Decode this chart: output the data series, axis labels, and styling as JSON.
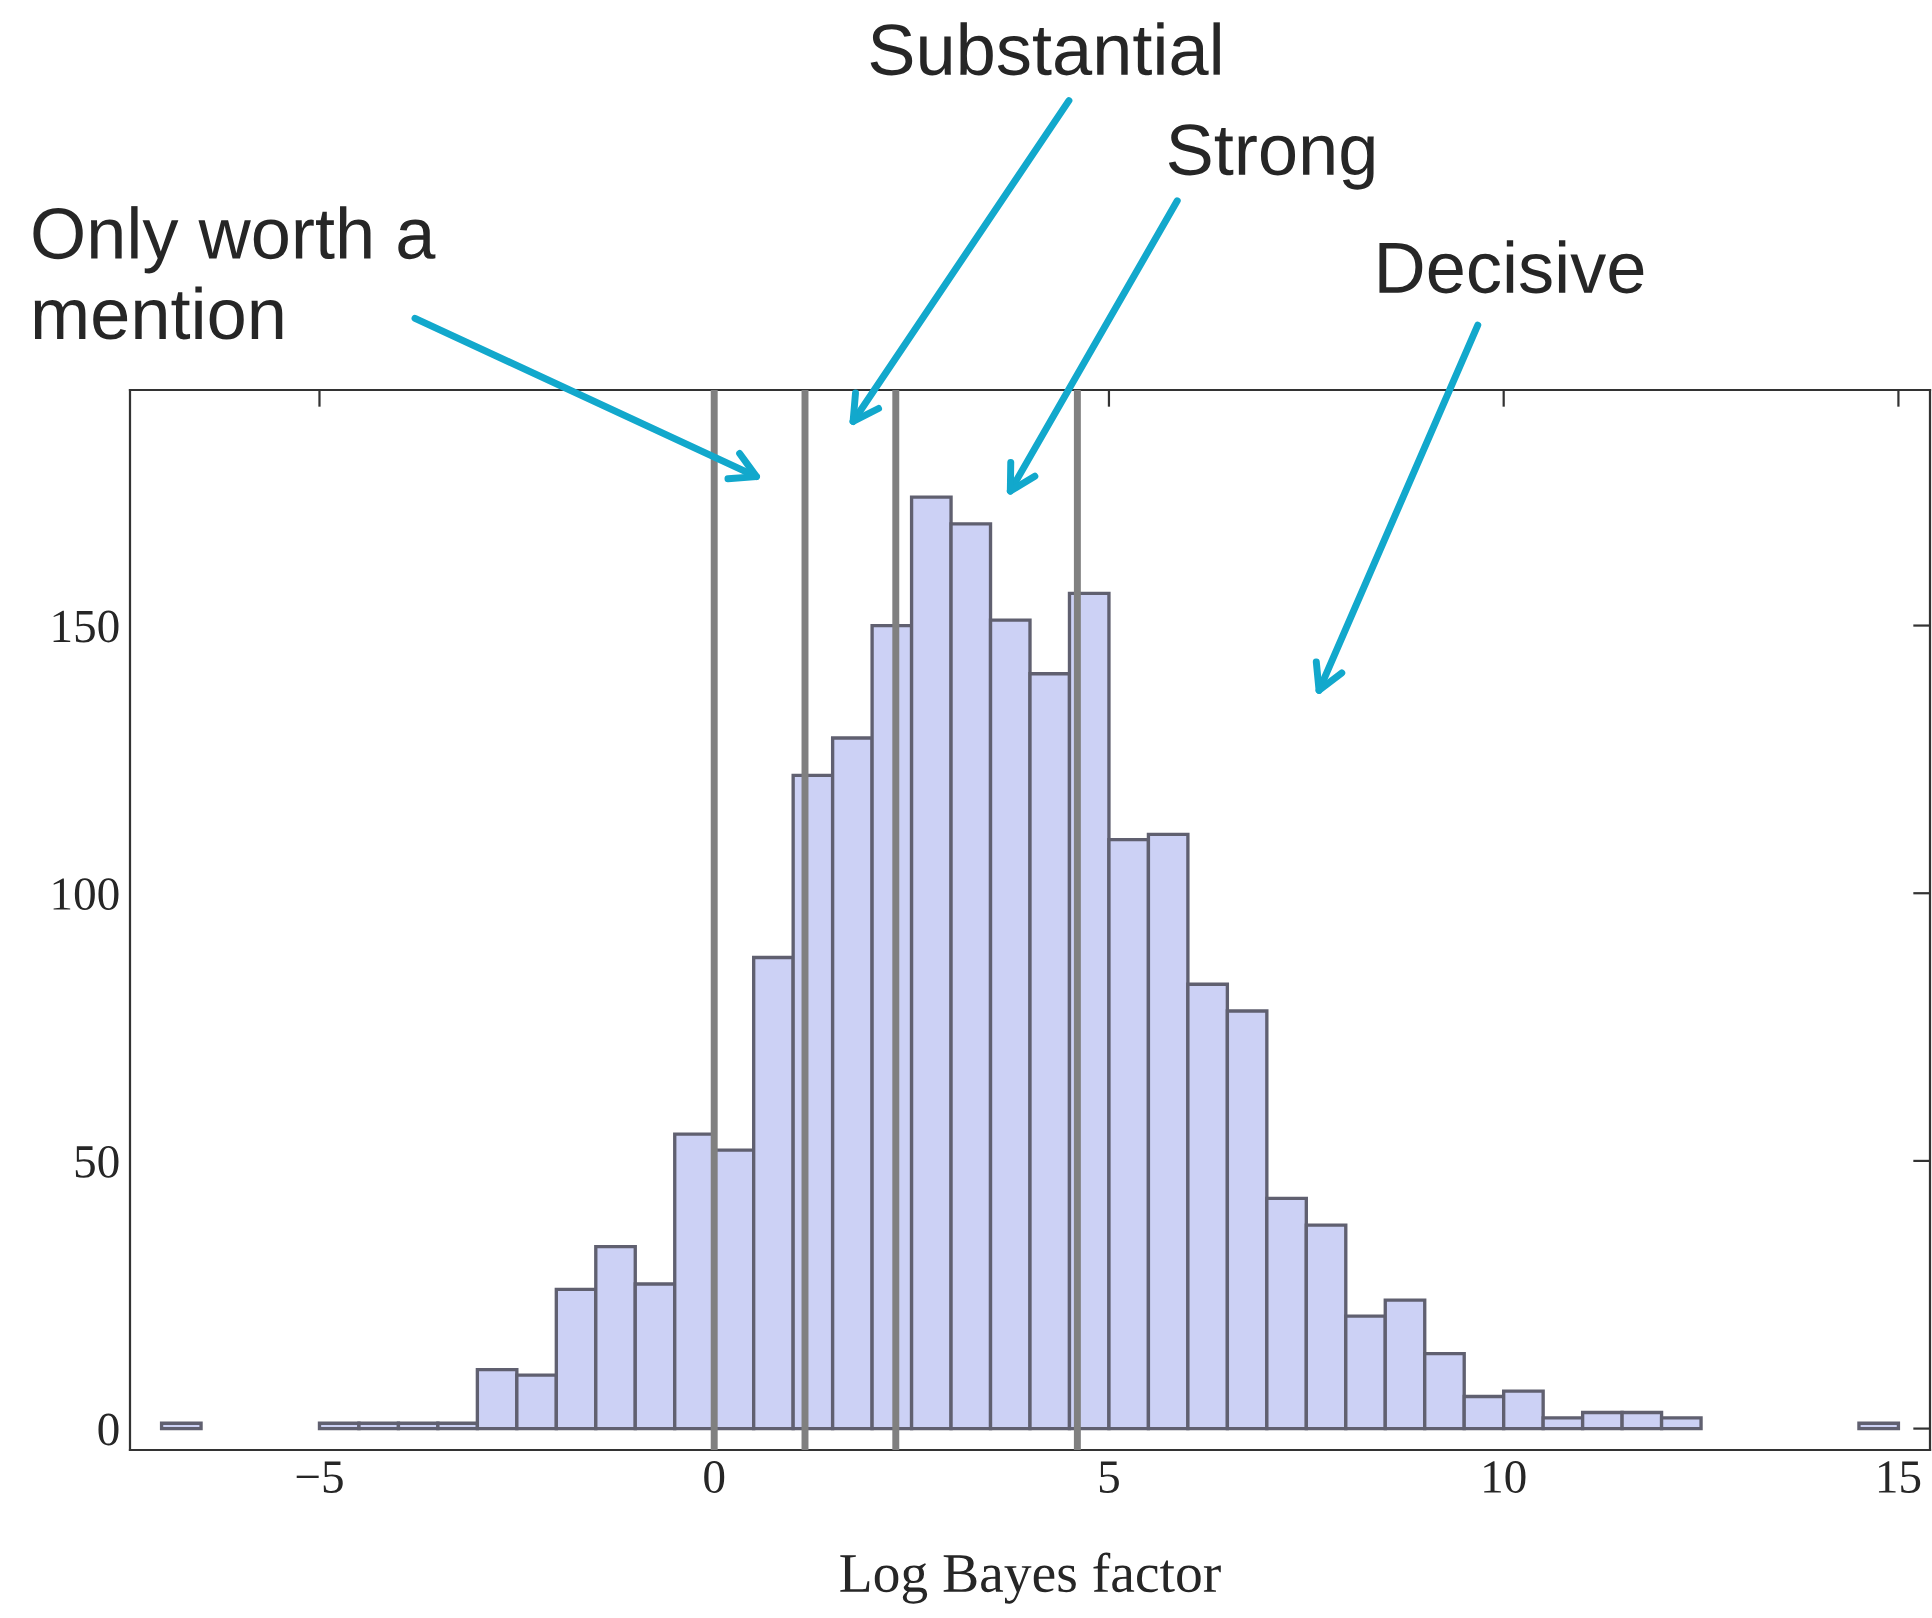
{
  "chart_data": {
    "type": "histogram",
    "xlabel": "Log Bayes factor",
    "bins": [
      -7,
      -6.5,
      -6,
      -5.5,
      -5,
      -4.5,
      -4,
      -3.5,
      -3,
      -2.5,
      -2,
      -1.5,
      -1,
      -0.5,
      0,
      0.5,
      1,
      1.5,
      2,
      2.5,
      3,
      3.5,
      4,
      4.5,
      5,
      5.5,
      6,
      6.5,
      7,
      7.5,
      8,
      8.5,
      9,
      9.5,
      10,
      10.5,
      11,
      11.5,
      12,
      12.5,
      13,
      13.5,
      14,
      14.5,
      15
    ],
    "values": [
      1,
      0,
      0,
      0,
      1,
      1,
      1,
      1,
      11,
      10,
      26,
      34,
      27,
      55,
      52,
      88,
      122,
      129,
      150,
      174,
      169,
      151,
      141,
      156,
      110,
      111,
      83,
      78,
      43,
      38,
      21,
      24,
      14,
      6,
      7,
      2,
      3,
      3,
      2,
      0,
      0,
      0,
      0,
      1
    ],
    "color": "#ccd1f5",
    "xlim": [
      -7.4,
      15.4
    ],
    "ylim": [
      -4,
      194
    ],
    "xticks": [
      {
        "value": -5,
        "label": "−5"
      },
      0,
      5,
      10,
      15
    ],
    "yticks": [
      0,
      50,
      100,
      150
    ],
    "ref_lines": [
      {
        "axis": "x",
        "value": 0,
        "color": "#808080"
      },
      {
        "axis": "x",
        "value": 1.15,
        "color": "#808080"
      },
      {
        "axis": "x",
        "value": 2.3,
        "color": "#808080"
      },
      {
        "axis": "x",
        "value": 4.6,
        "color": "#808080"
      }
    ],
    "annotations": [
      "Only worth a\nmention",
      "Substantial",
      "Strong",
      "Decisive"
    ],
    "grid": false,
    "legend": false
  }
}
